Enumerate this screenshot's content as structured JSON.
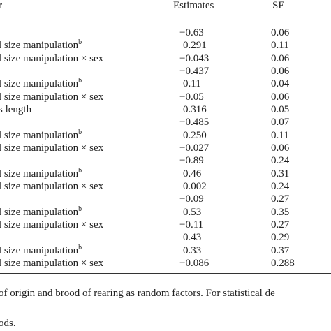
{
  "table": {
    "header": [
      "r",
      "Estimates",
      "SE"
    ],
    "rows": [
      {
        "label": "",
        "estimate": "−0.63",
        "se": "0.06"
      },
      {
        "label": "l size manipulation",
        "note": "b",
        "estimate": "0.291",
        "se": "0.11"
      },
      {
        "label": "l size manipulation × sex",
        "estimate": "−0.043",
        "se": "0.06"
      },
      {
        "label": "",
        "estimate": "−0.437",
        "se": "0.06"
      },
      {
        "label": "l size manipulation",
        "note": "b",
        "estimate": "0.11",
        "se": "0.04"
      },
      {
        "label": "l size manipulation × sex",
        "estimate": "−0.05",
        "se": "0.06"
      },
      {
        "label": "s length",
        "estimate": "0.316",
        "se": "0.05"
      },
      {
        "label": "",
        "estimate": "−0.485",
        "se": "0.07"
      },
      {
        "label": "l size manipulation",
        "note": "b",
        "estimate": "0.250",
        "se": "0.11"
      },
      {
        "label": "l size manipulation × sex",
        "estimate": "−0.027",
        "se": "0.06"
      },
      {
        "label": "",
        "estimate": "−0.89",
        "se": "0.24"
      },
      {
        "label": "l size manipulation",
        "note": "b",
        "estimate": "0.46",
        "se": "0.31"
      },
      {
        "label": "l size manipulation × sex",
        "estimate": "0.002",
        "se": "0.24"
      },
      {
        "label": "",
        "estimate": "−0.09",
        "se": "0.27"
      },
      {
        "label": "l size manipulation",
        "note": "b",
        "estimate": "0.53",
        "se": "0.35"
      },
      {
        "label": "l size manipulation × sex",
        "estimate": "−0.11",
        "se": "0.27"
      },
      {
        "label": "",
        "estimate": "0.43",
        "se": "0.29"
      },
      {
        "label": "l size manipulation",
        "note": "b",
        "estimate": "0.33",
        "se": "0.37"
      },
      {
        "label": "l size manipulation × sex",
        "estimate": "−0.086",
        "se": "0.288"
      }
    ]
  },
  "footnotes": [
    "of origin and brood of rearing as random factors. For statistical de",
    "ods."
  ]
}
